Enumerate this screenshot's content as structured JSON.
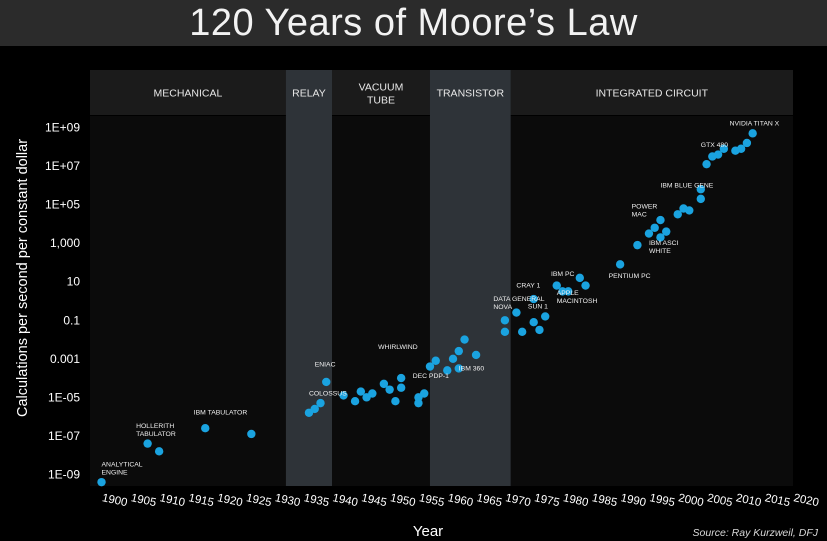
{
  "title": "120 Years of Moore’s Law",
  "chart_data": {
    "type": "scatter",
    "xlabel": "Year",
    "ylabel": "Calculations per second per constant dollar",
    "xlim": [
      1898,
      2020
    ],
    "ylim_log10": [
      -9.6,
      9.6
    ],
    "y_scale": "log",
    "source": "Source: Ray Kurzweil, DFJ",
    "x_ticks": [
      1900,
      1905,
      1910,
      1915,
      1920,
      1925,
      1930,
      1935,
      1940,
      1945,
      1950,
      1955,
      1960,
      1965,
      1970,
      1975,
      1980,
      1985,
      1990,
      1995,
      2000,
      2005,
      2010,
      2015,
      2020
    ],
    "y_ticks": [
      {
        "label": "1E+09",
        "log10": 9
      },
      {
        "label": "1E+07",
        "log10": 7
      },
      {
        "label": "1E+05",
        "log10": 5
      },
      {
        "label": "1,000",
        "log10": 3
      },
      {
        "label": "10",
        "log10": 1
      },
      {
        "label": "0.1",
        "log10": -1
      },
      {
        "label": "0.001",
        "log10": -3
      },
      {
        "label": "1E-05",
        "log10": -5
      },
      {
        "label": "1E-07",
        "log10": -7
      },
      {
        "label": "1E-09",
        "log10": -9
      }
    ],
    "eras": [
      {
        "label": "MECHANICAL",
        "from": 1898,
        "to": 1932,
        "shade": false
      },
      {
        "label": "RELAY",
        "from": 1932,
        "to": 1940,
        "shade": true
      },
      {
        "label": "VACUUM\nTUBE",
        "from": 1940,
        "to": 1957,
        "shade": false
      },
      {
        "label": "TRANSISTOR",
        "from": 1957,
        "to": 1971,
        "shade": true
      },
      {
        "label": "INTEGRATED CIRCUIT",
        "from": 1971,
        "to": 2020,
        "shade": false
      }
    ],
    "points": [
      [
        1900,
        -9.4
      ],
      [
        1908,
        -7.4
      ],
      [
        1910,
        -7.8
      ],
      [
        1918,
        -6.6
      ],
      [
        1926,
        -6.9
      ],
      [
        1936,
        -5.8
      ],
      [
        1937,
        -5.6
      ],
      [
        1938,
        -5.3
      ],
      [
        1939,
        -4.2
      ],
      [
        1942,
        -4.9
      ],
      [
        1944,
        -5.2
      ],
      [
        1945,
        -4.7
      ],
      [
        1946,
        -5.0
      ],
      [
        1947,
        -4.8
      ],
      [
        1949,
        -4.3
      ],
      [
        1950,
        -4.6
      ],
      [
        1951,
        -5.2
      ],
      [
        1952,
        -4.0
      ],
      [
        1952,
        -4.5
      ],
      [
        1955,
        -5.0
      ],
      [
        1955,
        -5.3
      ],
      [
        1956,
        -4.8
      ],
      [
        1957,
        -3.4
      ],
      [
        1958,
        -3.1
      ],
      [
        1960,
        -3.6
      ],
      [
        1961,
        -3.0
      ],
      [
        1962,
        -2.6
      ],
      [
        1962,
        -3.5
      ],
      [
        1963,
        -2.0
      ],
      [
        1965,
        -2.8
      ],
      [
        1970,
        -1.0
      ],
      [
        1970,
        -1.6
      ],
      [
        1972,
        -0.6
      ],
      [
        1973,
        -1.6
      ],
      [
        1975,
        -1.1
      ],
      [
        1975,
        0.1
      ],
      [
        1976,
        -1.5
      ],
      [
        1977,
        -0.8
      ],
      [
        1979,
        0.8
      ],
      [
        1980,
        0.5
      ],
      [
        1981,
        0.5
      ],
      [
        1983,
        1.2
      ],
      [
        1984,
        0.8
      ],
      [
        1990,
        1.9
      ],
      [
        1993,
        2.9
      ],
      [
        1995,
        3.5
      ],
      [
        1996,
        3.8
      ],
      [
        1997,
        3.3
      ],
      [
        1997,
        4.2
      ],
      [
        1998,
        3.6
      ],
      [
        2000,
        4.5
      ],
      [
        2001,
        4.8
      ],
      [
        2002,
        4.7
      ],
      [
        2004,
        5.3
      ],
      [
        2004,
        5.8
      ],
      [
        2005,
        7.1
      ],
      [
        2006,
        7.5
      ],
      [
        2007,
        7.6
      ],
      [
        2008,
        7.9
      ],
      [
        2010,
        7.8
      ],
      [
        2011,
        7.9
      ],
      [
        2012,
        8.2
      ],
      [
        2013,
        8.7
      ]
    ],
    "annotations": [
      {
        "text": "ANALYTICAL\nENGINE",
        "x": 1900,
        "y": -8.6,
        "align": "left"
      },
      {
        "text": "HOLLERITH\nTABULATOR",
        "x": 1906,
        "y": -6.6,
        "align": "left"
      },
      {
        "text": "IBM TABULATOR",
        "x": 1916,
        "y": -5.9,
        "align": "left"
      },
      {
        "text": "ENIAC",
        "x": 1937,
        "y": -3.4,
        "align": "left"
      },
      {
        "text": "COLOSSUS",
        "x": 1936,
        "y": -4.9,
        "align": "left"
      },
      {
        "text": "WHIRLWIND",
        "x": 1948,
        "y": -2.5,
        "align": "left"
      },
      {
        "text": "DEC PDP-1",
        "x": 1954,
        "y": -4.0,
        "align": "left"
      },
      {
        "text": "IBM 360",
        "x": 1962,
        "y": -3.6,
        "align": "left"
      },
      {
        "text": "DATA GENERAL\nNOVA",
        "x": 1968,
        "y": 0.0,
        "align": "left"
      },
      {
        "text": "CRAY 1",
        "x": 1972,
        "y": 0.7,
        "align": "left"
      },
      {
        "text": "SUN 1",
        "x": 1974,
        "y": -0.4,
        "align": "left"
      },
      {
        "text": "IBM PC",
        "x": 1978,
        "y": 1.3,
        "align": "left"
      },
      {
        "text": "APPLE\nMACINTOSH",
        "x": 1979,
        "y": 0.3,
        "align": "left"
      },
      {
        "text": "PENTIUM PC",
        "x": 1988,
        "y": 1.2,
        "align": "left"
      },
      {
        "text": "POWER\nMAC",
        "x": 1992,
        "y": 4.8,
        "align": "left"
      },
      {
        "text": "IBM ASCI\nWHITE",
        "x": 1995,
        "y": 2.9,
        "align": "left"
      },
      {
        "text": "IBM BLUE GENE",
        "x": 1997,
        "y": 5.9,
        "align": "left"
      },
      {
        "text": "GTX 480",
        "x": 2004,
        "y": 8.0,
        "align": "left"
      },
      {
        "text": "NVIDIA TITAN X",
        "x": 2009,
        "y": 9.1,
        "align": "left"
      }
    ],
    "colors": {
      "point": "#1aa3e0",
      "shade": "#2e3338",
      "band": "#1b1b1b",
      "plot_bg": "#0b0b0b",
      "text": "#ffffff"
    }
  }
}
